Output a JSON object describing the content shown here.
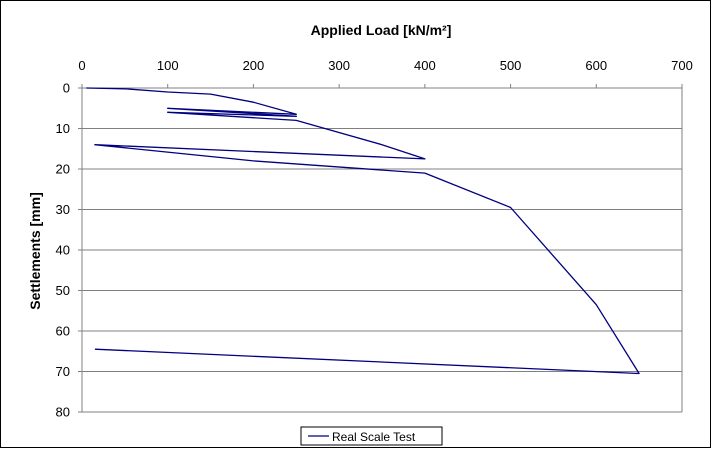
{
  "chart_data": {
    "type": "line",
    "title": "Applied Load [kN/m²]",
    "xlabel": "Applied Load [kN/m²]",
    "ylabel": "Settlements [mm]",
    "xlim": [
      0,
      700
    ],
    "ylim": [
      0,
      80
    ],
    "y_inverted": true,
    "x_axis_position": "top",
    "xticks": [
      "0",
      "100",
      "200",
      "300",
      "400",
      "500",
      "600",
      "700"
    ],
    "yticks": [
      "0",
      "10",
      "20",
      "30",
      "40",
      "50",
      "60",
      "70",
      "80"
    ],
    "grid": "horizontal",
    "legend_position": "bottom-center",
    "colors": {
      "series": "#000080",
      "grid": "#808080",
      "axis": "#808080"
    },
    "series": [
      {
        "name": "Real Scale Test",
        "x": [
          5,
          50,
          100,
          150,
          200,
          250,
          100,
          250,
          100,
          250,
          350,
          400,
          15,
          400,
          15,
          200,
          400,
          500,
          600,
          650,
          15
        ],
        "y": [
          0,
          0.2,
          1,
          1.5,
          3.5,
          6.5,
          5,
          7,
          6,
          8,
          14,
          17.5,
          14,
          17.5,
          14,
          18,
          21,
          29.5,
          53.5,
          70.5,
          64.5
        ]
      }
    ]
  }
}
